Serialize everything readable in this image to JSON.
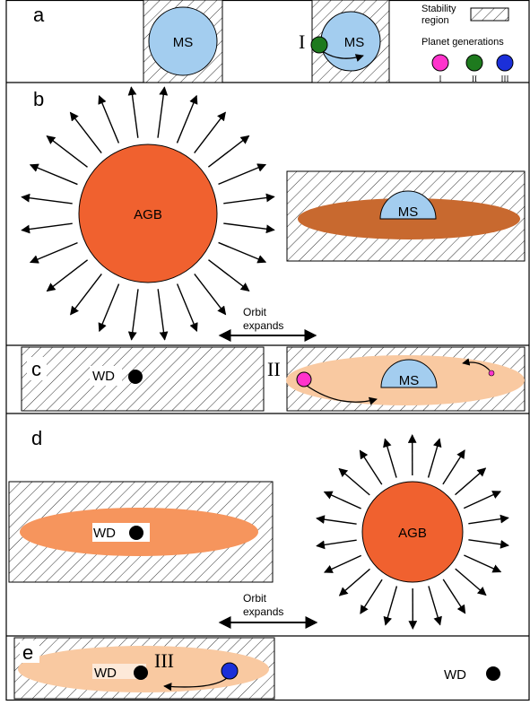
{
  "panels": {
    "a": {
      "label": "a"
    },
    "b": {
      "label": "b"
    },
    "c": {
      "label": "c"
    },
    "d": {
      "label": "d"
    },
    "e": {
      "label": "e"
    }
  },
  "stars": {
    "ms": "MS",
    "agb": "AGB",
    "wd": "WD"
  },
  "legend": {
    "stability_line1": "Stability",
    "stability_line2": "region",
    "planet_generations": "Planet generations",
    "gen_I": "I",
    "gen_II": "II",
    "gen_III": "III"
  },
  "annotations": {
    "orbit_line1": "Orbit",
    "orbit_line2": "expands",
    "roman_I": "I",
    "roman_II": "II",
    "roman_III": "III"
  },
  "colors": {
    "ms_blue": "#a3cdef",
    "agb_orange": "#f0612f",
    "disk_brown": "#c8692f",
    "disk_peach": "#f9c9a1",
    "disk_salmon": "#f6955d",
    "planet_magenta": "#ff33cc",
    "planet_green": "#1e7a1e",
    "planet_blue": "#1b2fd9"
  }
}
